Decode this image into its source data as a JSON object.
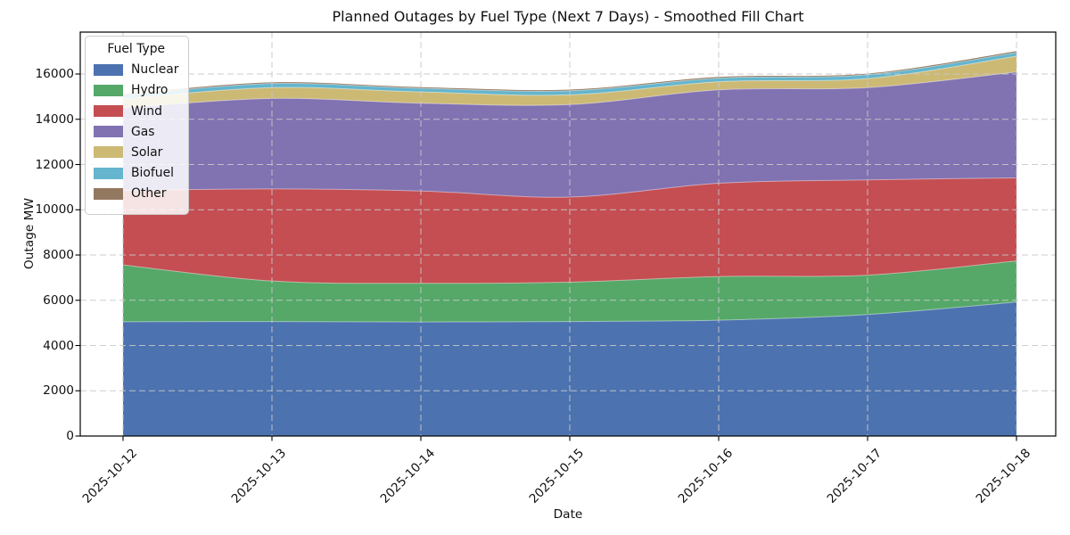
{
  "title": "Planned Outages by Fuel Type (Next 7 Days) - Smoothed Fill Chart",
  "chart_data": {
    "type": "area",
    "stacked": true,
    "smoothed": true,
    "title": "Planned Outages by Fuel Type (Next 7 Days) - Smoothed Fill Chart",
    "xlabel": "Date",
    "ylabel": "Outage MW",
    "x": [
      "2025-10-12",
      "2025-10-13",
      "2025-10-14",
      "2025-10-15",
      "2025-10-16",
      "2025-10-17",
      "2025-10-18"
    ],
    "yticks": [
      0,
      2000,
      4000,
      6000,
      8000,
      10000,
      12000,
      14000,
      16000
    ],
    "ylim": [
      0,
      17800
    ],
    "grid": true,
    "legend": {
      "title": "Fuel Type",
      "position": "upper left"
    },
    "series": [
      {
        "name": "Nuclear",
        "color": "#4C72B0",
        "values": [
          5050,
          5060,
          5040,
          5060,
          5120,
          5370,
          5920
        ]
      },
      {
        "name": "Hydro",
        "color": "#55A868",
        "values": [
          2510,
          1790,
          1710,
          1740,
          1930,
          1740,
          1820
        ]
      },
      {
        "name": "Wind",
        "color": "#C44E52",
        "values": [
          3290,
          4070,
          4080,
          3760,
          4120,
          4210,
          3670
        ]
      },
      {
        "name": "Gas",
        "color": "#8172B2",
        "values": [
          3650,
          4000,
          3880,
          4090,
          4130,
          4080,
          4680
        ]
      },
      {
        "name": "Solar",
        "color": "#CCB974",
        "values": [
          400,
          480,
          500,
          430,
          360,
          400,
          700
        ]
      },
      {
        "name": "Biofuel",
        "color": "#64B5CD",
        "values": [
          150,
          180,
          160,
          180,
          160,
          170,
          160
        ]
      },
      {
        "name": "Other",
        "color": "#937860",
        "values": [
          50,
          50,
          50,
          50,
          50,
          50,
          60
        ]
      }
    ],
    "totals": [
      15100,
      15630,
      15420,
      15310,
      15870,
      16020,
      17010
    ]
  }
}
